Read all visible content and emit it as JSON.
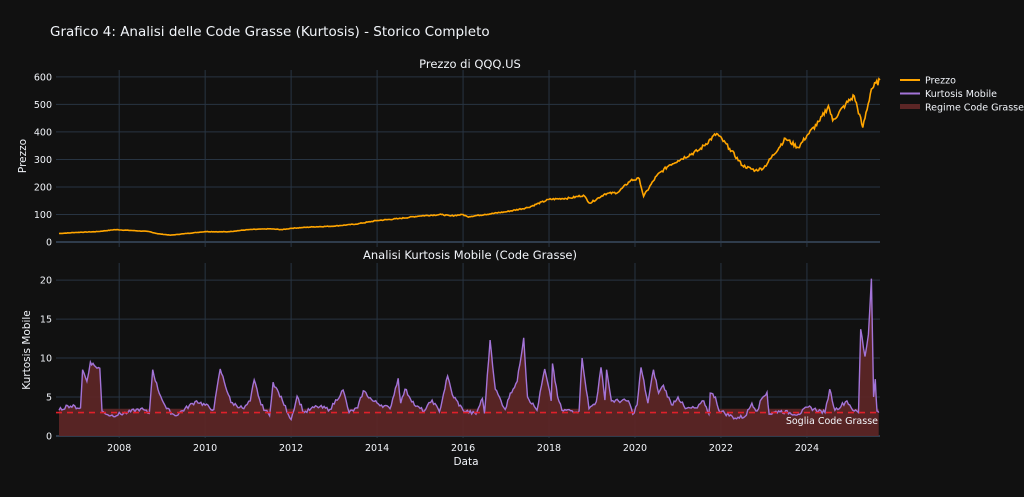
{
  "title": "Grafico 4: Analisi delle Code Grasse (Kurtosis) - Storico Completo",
  "colors": {
    "background": "#111111",
    "grid": "#283442",
    "price": "#FFA500",
    "kurtosis": "#A374D8",
    "regime": "#5C2626",
    "threshold": "#E0202A"
  },
  "legend": {
    "position": "top-right",
    "items": [
      {
        "label": "Prezzo",
        "color": "#FFA500",
        "kind": "line"
      },
      {
        "label": "Kurtosis Mobile",
        "color": "#A374D8",
        "kind": "line"
      },
      {
        "label": "Regime Code Grasse",
        "color": "#5C2626",
        "kind": "fill"
      }
    ]
  },
  "chart_data": [
    {
      "type": "line",
      "title": "Prezzo di QQQ.US",
      "xlabel": "",
      "ylabel": "Prezzo",
      "xlim": [
        2006.53,
        2025.7
      ],
      "ylim": [
        -18,
        625
      ],
      "yticks": [
        0,
        100,
        200,
        300,
        400,
        500,
        600
      ],
      "grid": true,
      "series": [
        {
          "name": "Prezzo",
          "x": [
            2006.6,
            2007.0,
            2007.5,
            2007.9,
            2008.3,
            2008.7,
            2008.9,
            2009.2,
            2009.5,
            2010.0,
            2010.5,
            2011.0,
            2011.5,
            2011.8,
            2012.0,
            2012.5,
            2013.0,
            2013.5,
            2014.0,
            2014.5,
            2015.0,
            2015.5,
            2015.7,
            2016.0,
            2016.1,
            2016.5,
            2017.0,
            2017.5,
            2018.0,
            2018.5,
            2018.8,
            2018.95,
            2019.3,
            2019.6,
            2019.9,
            2020.1,
            2020.2,
            2020.5,
            2020.8,
            2021.0,
            2021.5,
            2021.9,
            2022.2,
            2022.5,
            2022.8,
            2023.0,
            2023.5,
            2023.8,
            2024.0,
            2024.3,
            2024.5,
            2024.6,
            2024.9,
            2025.1,
            2025.3,
            2025.5,
            2025.7
          ],
          "values": [
            31,
            35,
            38,
            45,
            42,
            38,
            30,
            25,
            30,
            38,
            37,
            45,
            48,
            45,
            50,
            55,
            58,
            65,
            78,
            85,
            95,
            100,
            95,
            100,
            92,
            100,
            110,
            125,
            155,
            160,
            170,
            141,
            175,
            180,
            224,
            230,
            166,
            240,
            280,
            296,
            335,
            394,
            340,
            278,
            260,
            270,
            376,
            343,
            387,
            440,
            495,
            441,
            500,
            531,
            416,
            556,
            589
          ]
        }
      ]
    },
    {
      "type": "line",
      "title": "Analisi Kurtosis Mobile (Code Grasse)",
      "xlabel": "Data",
      "ylabel": "Kurtosis Mobile",
      "xlim": [
        2006.53,
        2025.7
      ],
      "ylim": [
        -0.26,
        22.2
      ],
      "xticks": [
        "2008",
        "2010",
        "2012",
        "2014",
        "2016",
        "2018",
        "2020",
        "2022",
        "2024"
      ],
      "yticks": [
        0,
        5,
        10,
        15,
        20
      ],
      "grid": true,
      "threshold": {
        "value": 3,
        "label": "Soglia Code Grasse",
        "style": "dashed"
      },
      "series": [
        {
          "name": "Kurtosis Mobile",
          "x": [
            2006.6,
            2006.8,
            2007.1,
            2007.15,
            2007.25,
            2007.33,
            2007.45,
            2007.55,
            2007.6,
            2007.8,
            2008.2,
            2008.5,
            2008.7,
            2008.78,
            2008.9,
            2009.1,
            2009.3,
            2009.8,
            2010.2,
            2010.35,
            2010.6,
            2010.9,
            2011.05,
            2011.14,
            2011.3,
            2011.5,
            2011.58,
            2011.8,
            2012.0,
            2012.14,
            2012.3,
            2012.6,
            2012.9,
            2013.21,
            2013.35,
            2013.55,
            2013.68,
            2013.9,
            2014.3,
            2014.49,
            2014.55,
            2014.65,
            2014.9,
            2015.1,
            2015.28,
            2015.45,
            2015.64,
            2015.75,
            2016.0,
            2016.3,
            2016.45,
            2016.5,
            2016.63,
            2016.75,
            2016.98,
            2017.1,
            2017.26,
            2017.41,
            2017.5,
            2017.72,
            2017.9,
            2018.05,
            2018.08,
            2018.2,
            2018.3,
            2018.7,
            2018.77,
            2018.93,
            2019.1,
            2019.21,
            2019.3,
            2019.34,
            2019.45,
            2019.85,
            2019.95,
            2020.05,
            2020.14,
            2020.3,
            2020.43,
            2020.55,
            2020.66,
            2020.85,
            2021.0,
            2021.17,
            2021.45,
            2021.6,
            2021.72,
            2021.75,
            2021.87,
            2021.95,
            2022.33,
            2022.56,
            2022.72,
            2022.84,
            2022.95,
            2023.07,
            2023.12,
            2023.34,
            2023.8,
            2024.03,
            2024.42,
            2024.53,
            2024.65,
            2024.93,
            2025.1,
            2025.2,
            2025.25,
            2025.35,
            2025.43,
            2025.5,
            2025.55,
            2025.59,
            2025.63,
            2025.67
          ],
          "values": [
            3.3,
            3.9,
            3.6,
            8.5,
            7.0,
            9.5,
            8.9,
            8.7,
            3.2,
            2.6,
            3.0,
            3.5,
            2.9,
            8.5,
            6.0,
            3.5,
            2.6,
            4.5,
            3.4,
            8.6,
            4.3,
            3.5,
            4.5,
            7.2,
            4.0,
            2.6,
            6.9,
            4.5,
            2.1,
            5.1,
            3.0,
            3.8,
            3.4,
            5.9,
            3.0,
            3.6,
            5.8,
            4.5,
            3.5,
            7.4,
            4.2,
            6.0,
            3.8,
            3.2,
            4.6,
            3.1,
            7.7,
            5.3,
            3.3,
            2.8,
            4.8,
            2.9,
            12.3,
            6.0,
            3.4,
            5.5,
            7.0,
            12.6,
            5.0,
            3.3,
            8.6,
            4.5,
            9.3,
            5.0,
            3.3,
            3.2,
            10.0,
            3.5,
            4.4,
            8.8,
            4.6,
            8.5,
            4.5,
            4.5,
            2.8,
            4.0,
            8.8,
            4.2,
            8.5,
            5.5,
            6.5,
            4.0,
            5.0,
            3.5,
            3.6,
            4.5,
            2.8,
            5.5,
            5.0,
            3.3,
            2.3,
            2.5,
            4.2,
            3.2,
            4.8,
            5.6,
            2.8,
            3.2,
            2.8,
            3.7,
            3.0,
            6.0,
            3.3,
            4.5,
            3.2,
            3.0,
            13.7,
            10.2,
            13.0,
            20.2,
            5.0,
            7.3,
            3.2,
            3.0
          ]
        }
      ]
    }
  ]
}
